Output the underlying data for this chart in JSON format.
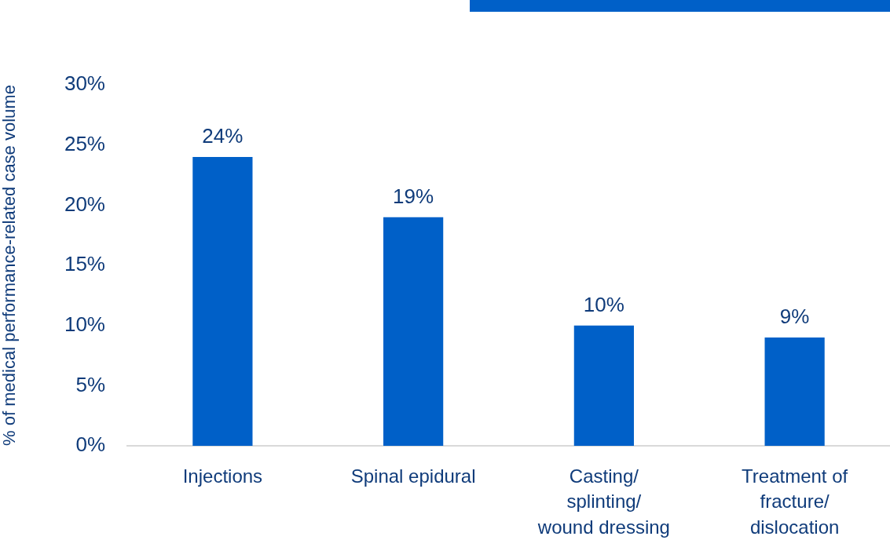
{
  "chart_data": {
    "type": "bar",
    "ylabel": "% of medical performance-related case volume",
    "categories": [
      "Injections",
      "Spinal epidural",
      "Casting/\nsplinting/\nwound dressing",
      "Treatment of\nfracture/\ndislocation"
    ],
    "values": [
      24,
      19,
      10,
      9
    ],
    "value_labels": [
      "24%",
      "19%",
      "10%",
      "9%"
    ],
    "color": "#0060c8",
    "ylim": [
      0,
      30
    ],
    "yticks": [
      {
        "value": 0,
        "label": "0%"
      },
      {
        "value": 5,
        "label": "5%"
      },
      {
        "value": 10,
        "label": "10%"
      },
      {
        "value": 15,
        "label": "15%"
      },
      {
        "value": 20,
        "label": "20%"
      },
      {
        "value": 25,
        "label": "25%"
      },
      {
        "value": 30,
        "label": "30%"
      }
    ],
    "grid": false,
    "legend": false
  }
}
